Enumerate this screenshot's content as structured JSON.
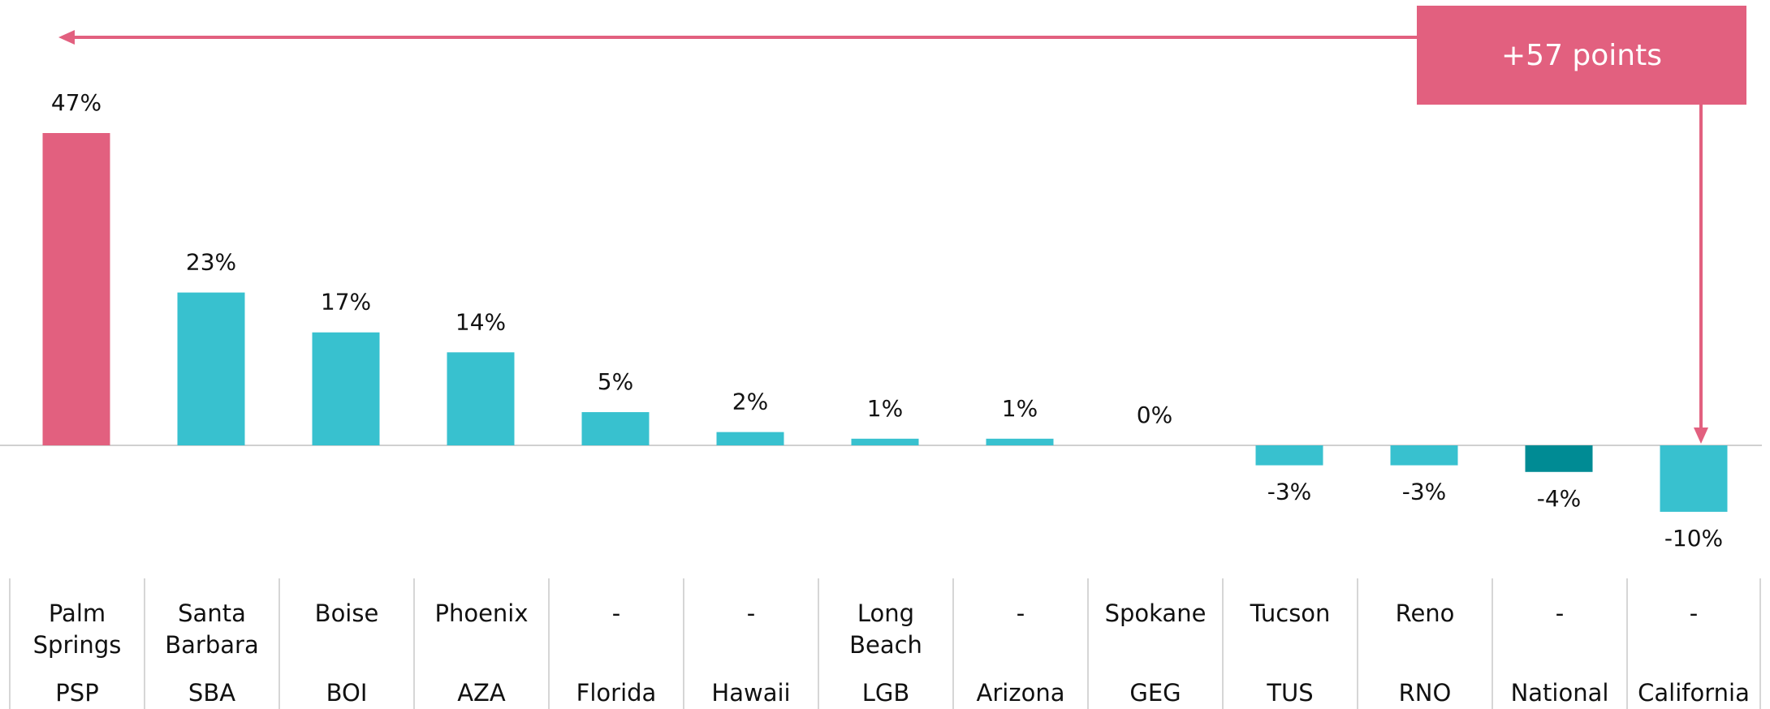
{
  "chart_data": {
    "type": "bar",
    "categories": [
      "PSP",
      "SBA",
      "BOI",
      "AZA",
      "Florida",
      "Hawaii",
      "LGB",
      "Arizona",
      "GEG",
      "TUS",
      "RNO",
      "National",
      "California"
    ],
    "category_names": [
      "Palm Springs",
      "Santa Barbara",
      "Boise",
      "Phoenix",
      "-",
      "-",
      "Long Beach",
      "-",
      "Spokane",
      "Tucson",
      "Reno",
      "-",
      "-"
    ],
    "values": [
      47,
      23,
      17,
      14,
      5,
      2,
      1,
      1,
      0,
      -3,
      -3,
      -4,
      -10
    ],
    "value_labels": [
      "47%",
      "23%",
      "17%",
      "14%",
      "5%",
      "2%",
      "1%",
      "1%",
      "0%",
      "-3%",
      "-3%",
      "-4%",
      "-10%"
    ],
    "colors": [
      "#e2607f",
      "#38c1cf",
      "#38c1cf",
      "#38c1cf",
      "#38c1cf",
      "#38c1cf",
      "#38c1cf",
      "#38c1cf",
      "#38c1cf",
      "#38c1cf",
      "#38c1cf",
      "#008b94",
      "#38c1cf"
    ],
    "annotation": "+57 points",
    "annotation_color": "#e2607f"
  }
}
